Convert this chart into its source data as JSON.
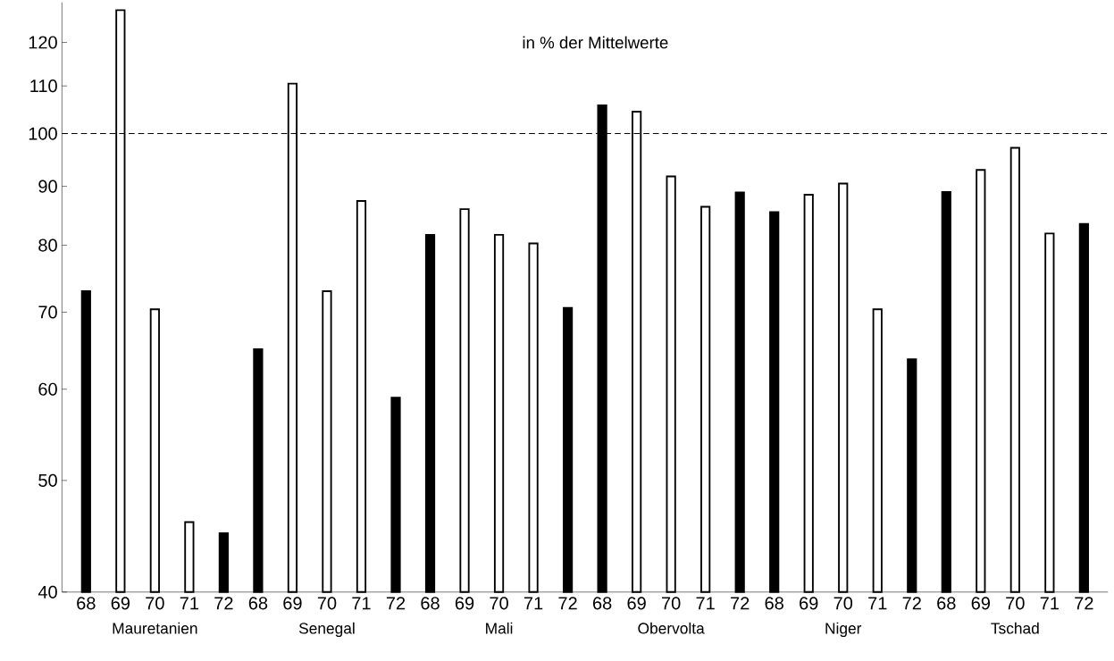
{
  "chart_data": {
    "type": "bar",
    "log": "y",
    "categories": [
      "68",
      "69",
      "70",
      "71",
      "72",
      "68",
      "69",
      "70",
      "71",
      "72",
      "68",
      "69",
      "70",
      "71",
      "72",
      "68",
      "69",
      "70",
      "71",
      "72",
      "68",
      "69",
      "70",
      "71",
      "72",
      "68",
      "69",
      "70",
      "71",
      "72"
    ],
    "values": [
      73,
      128,
      70.4,
      46,
      45,
      65,
      110.5,
      73,
      87.4,
      59,
      81.7,
      86,
      81.7,
      80.3,
      70.6,
      105.8,
      104.5,
      91.8,
      86.4,
      88.9,
      85.5,
      88.5,
      90.5,
      70.4,
      63.7,
      89,
      93,
      97.2,
      81.9,
      83.5
    ],
    "colors": [
      "#000000",
      "#ffffff",
      "#ffffff",
      "#ffffff",
      "#000000",
      "#000000",
      "#ffffff",
      "#ffffff",
      "#ffffff",
      "#000000",
      "#000000",
      "#ffffff",
      "#ffffff",
      "#ffffff",
      "#000000",
      "#000000",
      "#ffffff",
      "#ffffff",
      "#ffffff",
      "#000000",
      "#000000",
      "#ffffff",
      "#ffffff",
      "#ffffff",
      "#000000",
      "#000000",
      "#ffffff",
      "#ffffff",
      "#ffffff",
      "#000000"
    ],
    "ylim": [
      40,
      130
    ],
    "yticks": [
      40,
      50,
      60,
      70,
      80,
      90,
      100,
      110,
      120
    ],
    "ref_lines": [
      {
        "axis": "y",
        "value": 100,
        "line_style": "dashed"
      }
    ],
    "annotations": [
      "in % der Mittelwerte",
      "Mauretanien",
      "Senegal",
      "Mali",
      "Obervolta",
      "Niger",
      "Tschad"
    ]
  }
}
